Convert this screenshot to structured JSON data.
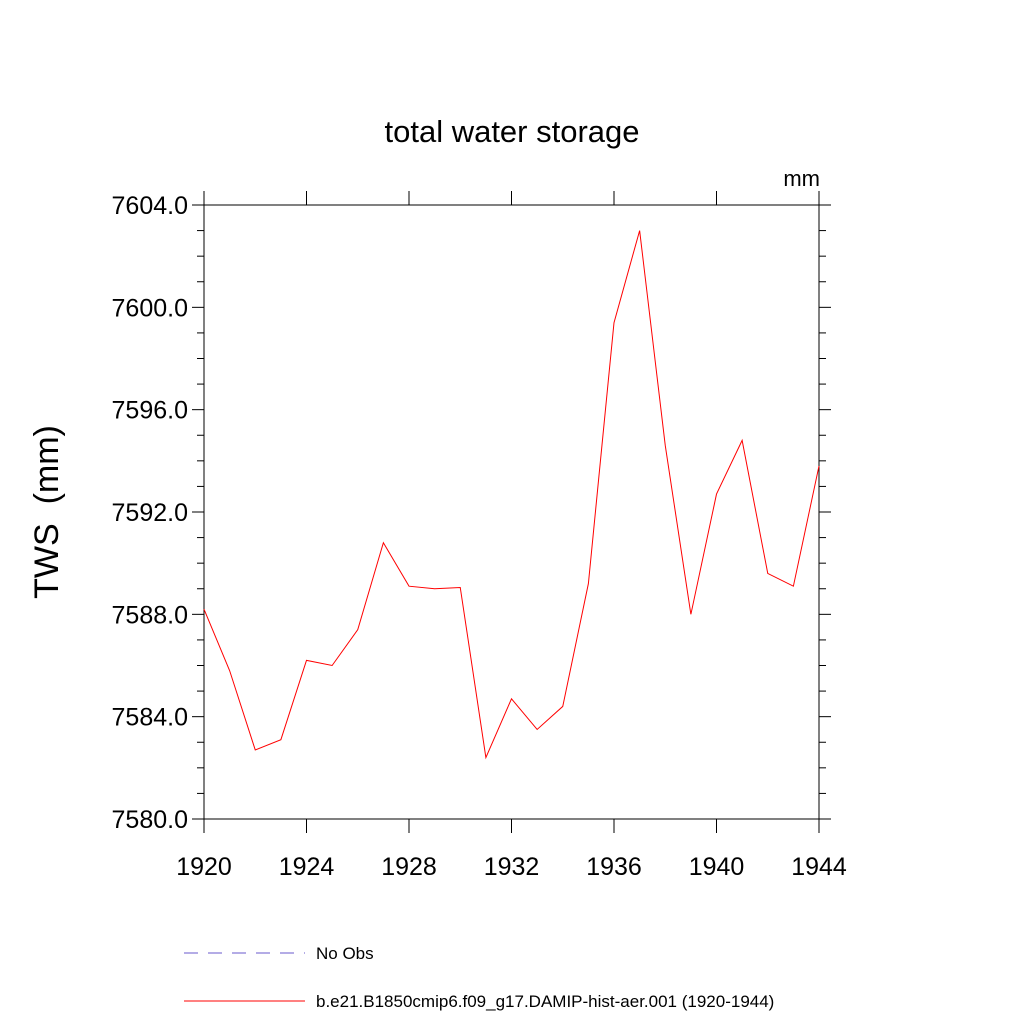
{
  "chart_data": {
    "type": "line",
    "title": "total water storage",
    "units": "mm",
    "xlabel": "",
    "ylabel": "TWS  (mm)",
    "xlim": [
      1920,
      1944
    ],
    "ylim": [
      7580.0,
      7604.0
    ],
    "x_ticks": [
      1920,
      1924,
      1928,
      1932,
      1936,
      1940,
      1944
    ],
    "x_tick_labels": [
      "1920",
      "1924",
      "1928",
      "1932",
      "1936",
      "1940",
      "1944"
    ],
    "y_ticks": [
      7580.0,
      7584.0,
      7588.0,
      7592.0,
      7596.0,
      7600.0,
      7604.0
    ],
    "y_tick_labels": [
      "7580.0",
      "7584.0",
      "7588.0",
      "7592.0",
      "7596.0",
      "7600.0",
      "7604.0"
    ],
    "grid": false,
    "legend_position": "bottom",
    "x": [
      1920,
      1921,
      1922,
      1923,
      1924,
      1925,
      1926,
      1927,
      1928,
      1929,
      1930,
      1931,
      1932,
      1933,
      1934,
      1935,
      1936,
      1937,
      1938,
      1939,
      1940,
      1941,
      1942,
      1943,
      1944
    ],
    "series": [
      {
        "name": "b.e21.B1850cmip6.f09_g17.DAMIP-hist-aer.001 (1920-1944)",
        "color": "#ff0000",
        "style": "solid",
        "values": [
          7588.2,
          7585.8,
          7582.7,
          7583.1,
          7586.2,
          7586.0,
          7587.4,
          7590.8,
          7589.1,
          7589.0,
          7589.05,
          7582.4,
          7584.7,
          7583.5,
          7584.4,
          7589.2,
          7599.4,
          7603.0,
          7594.6,
          7588.0,
          7592.7,
          7594.8,
          7589.6,
          7589.1,
          7593.8
        ]
      }
    ],
    "legend": [
      {
        "label": "No Obs",
        "color": "#6a5acd",
        "style": "dashed"
      },
      {
        "label": "b.e21.B1850cmip6.f09_g17.DAMIP-hist-aer.001 (1920-1944)",
        "color": "#ff0000",
        "style": "solid"
      }
    ]
  }
}
